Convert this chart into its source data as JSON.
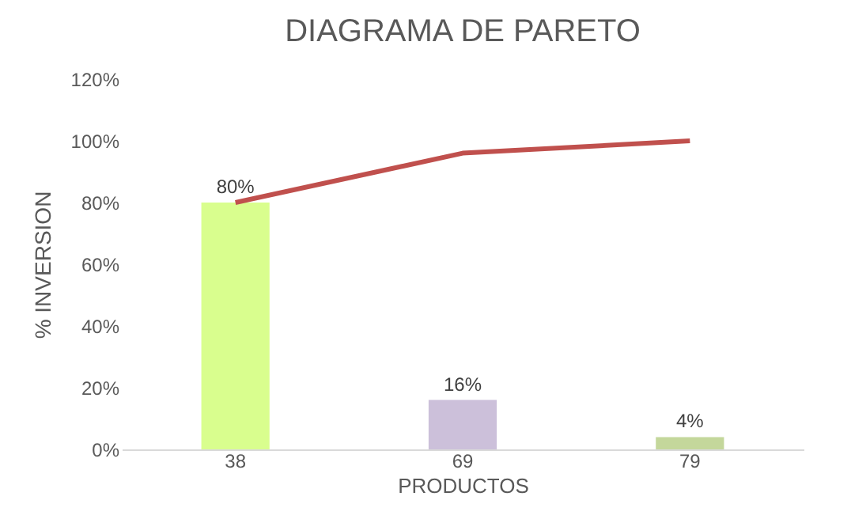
{
  "chart_data": {
    "type": "bar",
    "title": "DIAGRAMA DE PARETO",
    "xlabel": "PRODUCTOS",
    "ylabel": "% INVERSION",
    "categories": [
      "38",
      "69",
      "79"
    ],
    "series": [
      {
        "colors": [
          "#d9fe8e",
          "#ccc0da",
          "#c4d79b"
        ],
        "values": [
          80,
          16,
          4
        ],
        "value_labels": [
          "80%",
          "16%",
          "4%"
        ]
      },
      {
        "type": "line",
        "color": "#c0504d",
        "values": [
          80,
          96,
          100
        ],
        "marker": "none"
      }
    ],
    "ylim": [
      0,
      120
    ],
    "yticks": [
      {
        "value": 0,
        "label": "0%"
      },
      {
        "value": 20,
        "label": "20%"
      },
      {
        "value": 40,
        "label": "40%"
      },
      {
        "value": 60,
        "label": "60%"
      },
      {
        "value": 80,
        "label": "80%"
      },
      {
        "value": 100,
        "label": "100%"
      },
      {
        "value": 120,
        "label": "120%"
      }
    ],
    "grid": false
  }
}
